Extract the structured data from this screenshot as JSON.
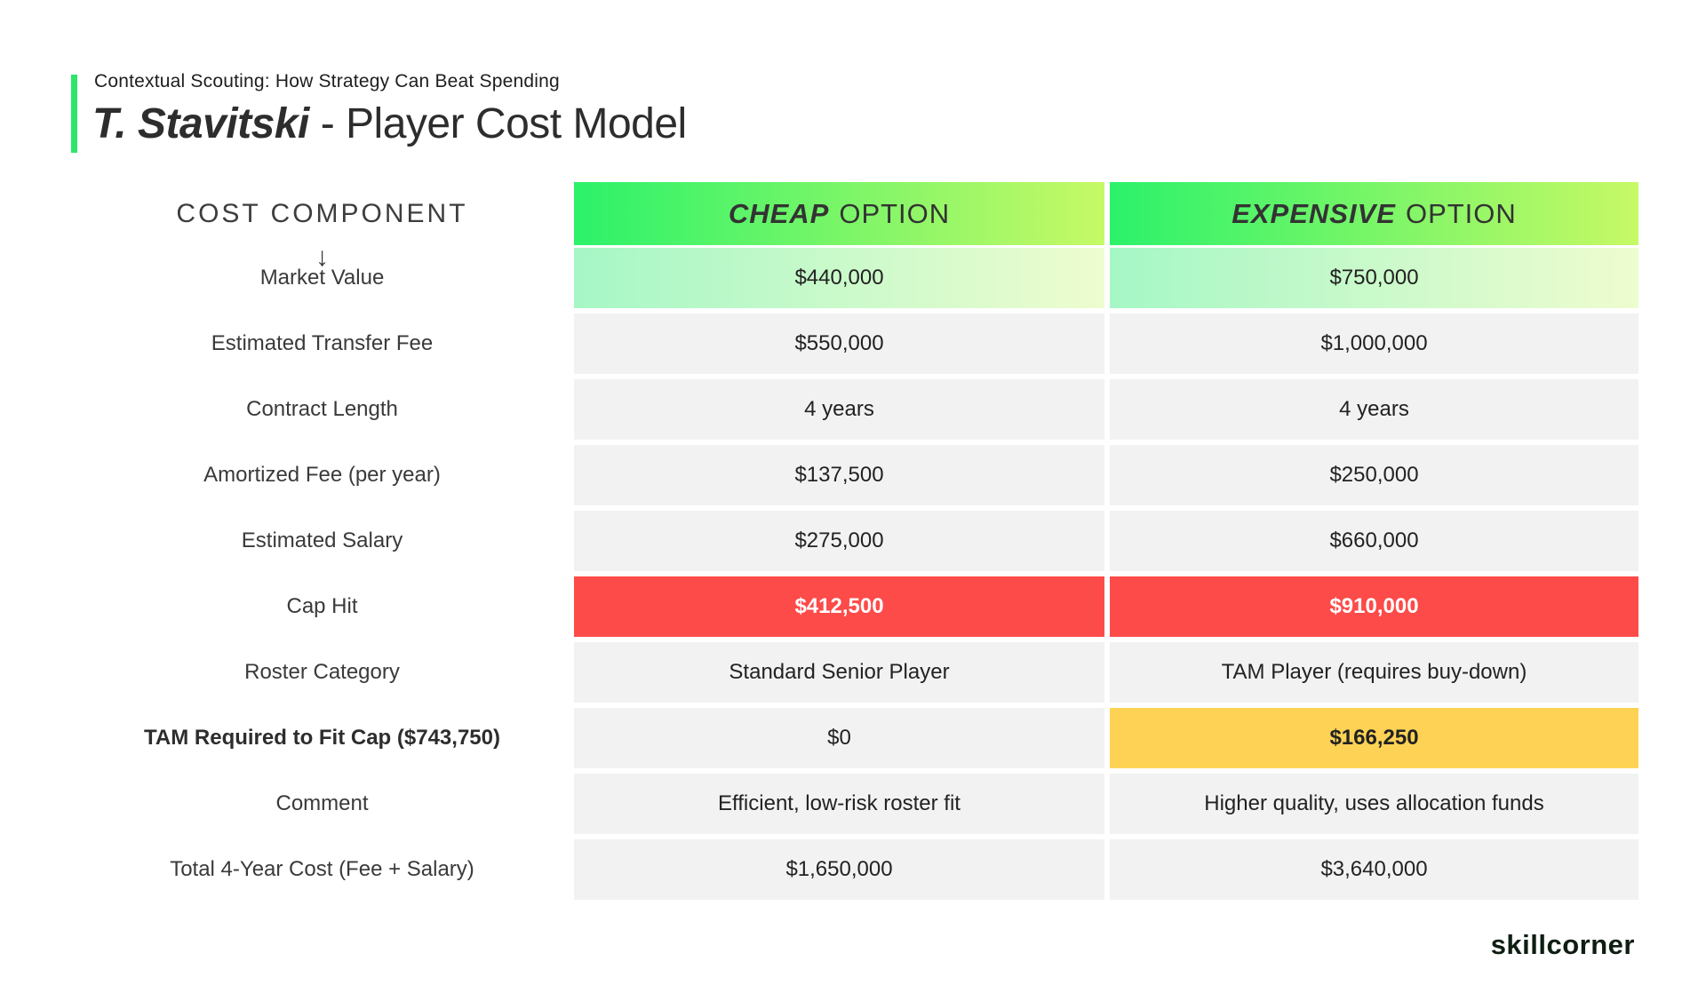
{
  "header": {
    "eyebrow": "Contextual Scouting: How Strategy Can Beat Spending",
    "title_name": "T. Stavitski",
    "title_rest": " - Player Cost Model"
  },
  "table": {
    "label_header": "COST COMPONENT",
    "arrow_icon": "↓",
    "columns": [
      {
        "emph": "CHEAP",
        "rest": "OPTION"
      },
      {
        "emph": "EXPENSIVE",
        "rest": "OPTION"
      }
    ],
    "rows": [
      {
        "label": "Market Value",
        "cheap": "$440,000",
        "expensive": "$750,000"
      },
      {
        "label": "Estimated Transfer Fee",
        "cheap": "$550,000",
        "expensive": "$1,000,000"
      },
      {
        "label": "Contract Length",
        "cheap": "4 years",
        "expensive": "4 years"
      },
      {
        "label": "Amortized Fee (per year)",
        "cheap": "$137,500",
        "expensive": "$250,000"
      },
      {
        "label": "Estimated Salary",
        "cheap": "$275,000",
        "expensive": "$660,000"
      },
      {
        "label": "Cap Hit",
        "cheap": "$412,500",
        "expensive": "$910,000"
      },
      {
        "label": "Roster Category",
        "cheap": "Standard Senior Player",
        "expensive": "TAM Player (requires buy-down)"
      },
      {
        "label": "TAM Required to Fit Cap ($743,750)",
        "cheap": "$0",
        "expensive": "$166,250"
      },
      {
        "label": "Comment",
        "cheap": "Efficient, low-risk roster fit",
        "expensive": "Higher quality, uses allocation funds"
      },
      {
        "label": "Total 4-Year Cost (Fee + Salary)",
        "cheap": "$1,650,000",
        "expensive": "$3,640,000"
      }
    ]
  },
  "footer": {
    "brand": "skillcorner"
  },
  "colors": {
    "accent_green": "#2ee56b",
    "header_gradient_start": "#2bf26a",
    "header_gradient_end": "#c7f966",
    "row1_gradient_start": "#a6f7c6",
    "row1_gradient_end": "#eefccf",
    "cap_hit_red": "#fd4b49",
    "tam_yellow": "#fed355",
    "row_gray": "#f2f2f2"
  },
  "chart_data": {
    "type": "table",
    "title": "T. Stavitski - Player Cost Model",
    "subtitle": "Contextual Scouting: How Strategy Can Beat Spending",
    "columns": [
      "COST COMPONENT",
      "CHEAP OPTION",
      "EXPENSIVE OPTION"
    ],
    "rows": [
      [
        "Market Value",
        "$440,000",
        "$750,000"
      ],
      [
        "Estimated Transfer Fee",
        "$550,000",
        "$1,000,000"
      ],
      [
        "Contract Length",
        "4 years",
        "4 years"
      ],
      [
        "Amortized Fee (per year)",
        "$137,500",
        "$250,000"
      ],
      [
        "Estimated Salary",
        "$275,000",
        "$660,000"
      ],
      [
        "Cap Hit",
        "$412,500",
        "$910,000"
      ],
      [
        "Roster Category",
        "Standard Senior Player",
        "TAM Player (requires buy-down)"
      ],
      [
        "TAM Required to Fit Cap ($743,750)",
        "$0",
        "$166,250"
      ],
      [
        "Comment",
        "Efficient, low-risk roster fit",
        "Higher quality, uses allocation funds"
      ],
      [
        "Total 4-Year Cost (Fee + Salary)",
        "$1,650,000",
        "$3,640,000"
      ]
    ],
    "highlights": {
      "Cap Hit": "red row",
      "TAM Required to Fit Cap expensive cell": "yellow",
      "Market Value": "green gradient row"
    }
  }
}
